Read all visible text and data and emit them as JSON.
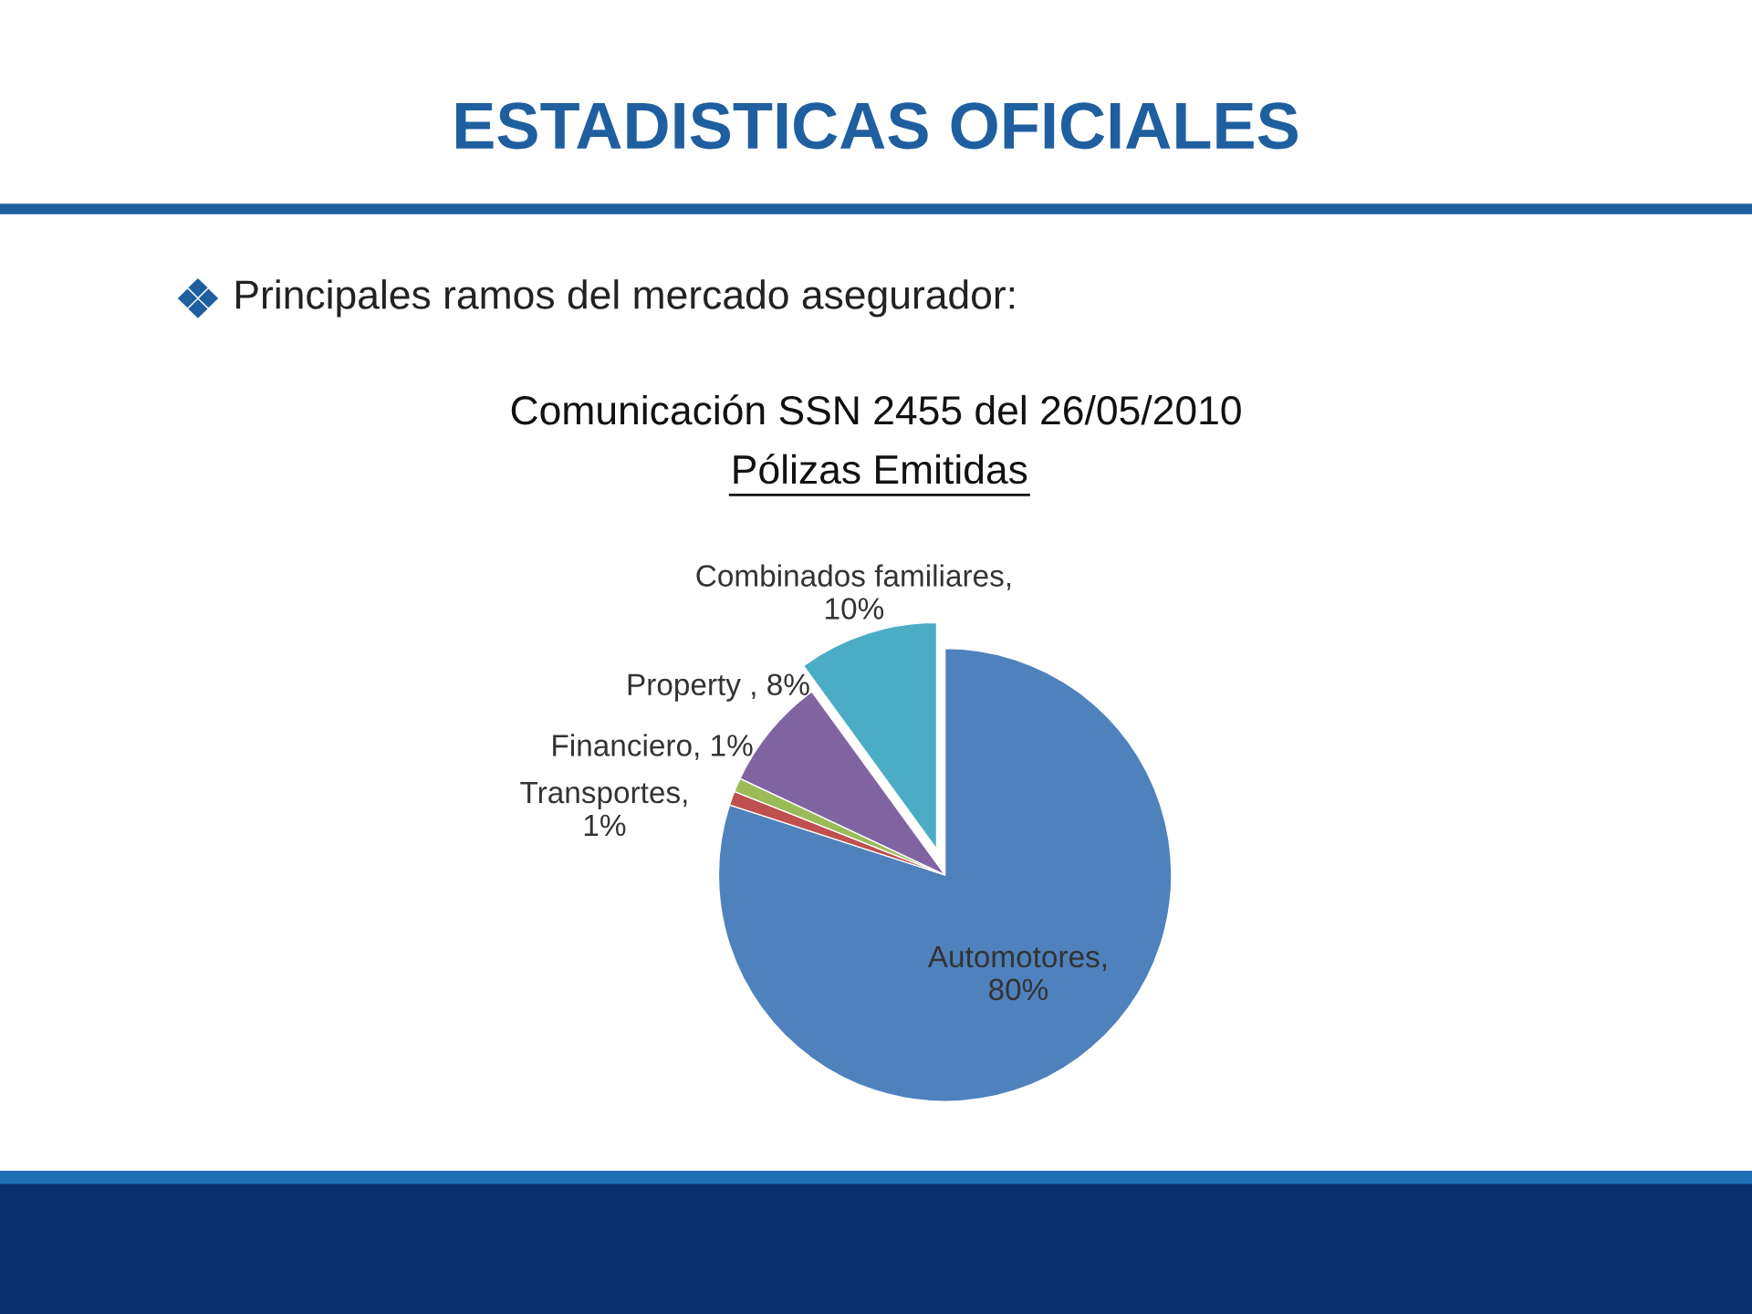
{
  "chart_data": {
    "type": "pie",
    "title": "ESTADISTICAS OFICIALES",
    "subtitle": "Principales ramos del mercado asegurador:",
    "annotations": [
      "Comunicación SSN 2455 del 26/05/2010",
      "Pólizas Emitidas"
    ],
    "categories": [
      "Automotores, 80%",
      "Transportes, 1%",
      "Financiero, 1%",
      "Property , 8%",
      "Combinados familiares, 10%"
    ],
    "values": [
      80,
      1,
      1,
      8,
      10
    ],
    "colors": [
      "#4f81bd",
      "#c0504d",
      "#9bbb59",
      "#8064a2",
      "#4bacc6"
    ],
    "legend": false
  }
}
